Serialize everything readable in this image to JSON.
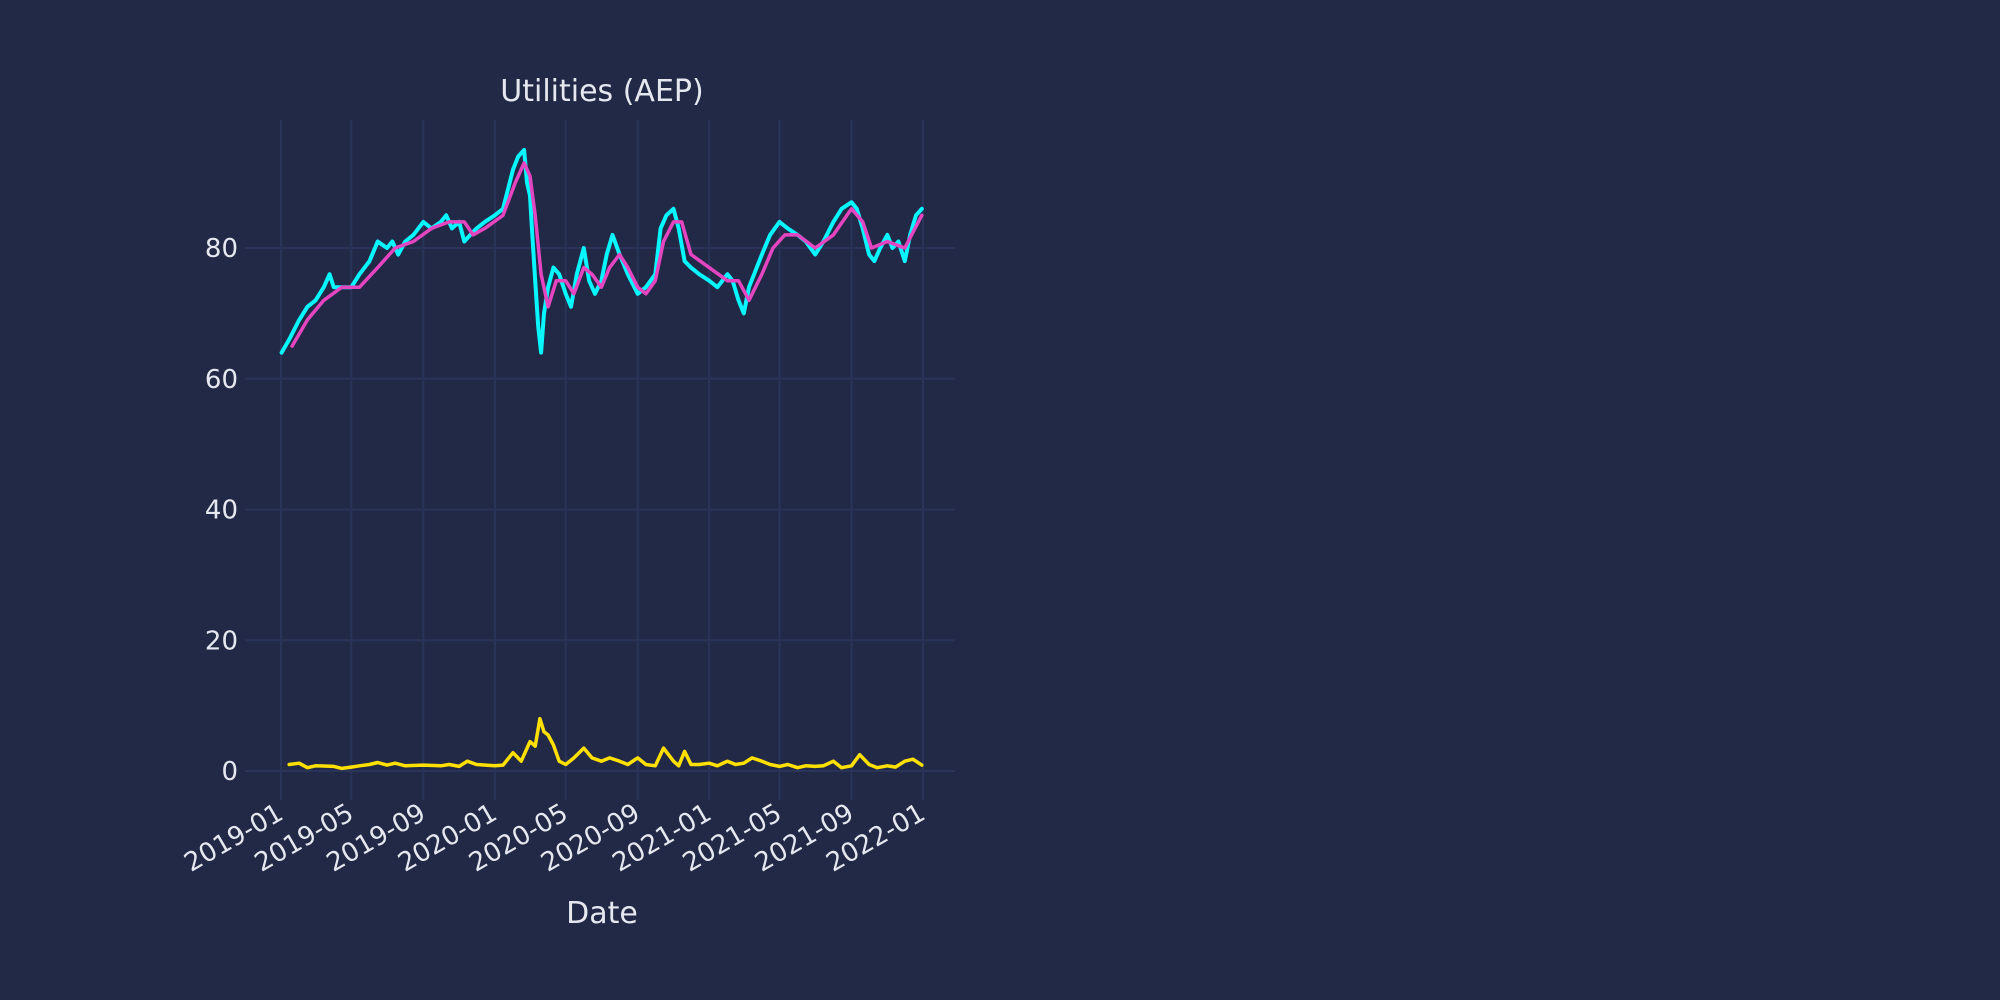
{
  "chart_data": {
    "type": "line",
    "title": "Utilities (AEP)",
    "xlabel": "Date",
    "ylabel": "",
    "x_range": [
      "2019-01-01",
      "2022-01-01"
    ],
    "ylim": [
      -4.5,
      100
    ],
    "x_ticks": [
      "2019-01",
      "2019-05",
      "2019-09",
      "2020-01",
      "2020-05",
      "2020-09",
      "2021-01",
      "2021-05",
      "2021-09",
      "2022-01"
    ],
    "y_ticks": [
      0,
      20,
      40,
      60,
      80
    ],
    "grid": true,
    "legend": "none",
    "colors": {
      "background": "#212946",
      "grid": "#2A3459",
      "text": "#E6E8F0",
      "price": "#08F7FE",
      "moving_average": "#E545C0",
      "volatility": "#FFE000"
    },
    "series": [
      {
        "role": "price",
        "color": "#08F7FE",
        "points": [
          [
            "2019-01-02",
            64
          ],
          [
            "2019-01-15",
            66
          ],
          [
            "2019-02-01",
            69
          ],
          [
            "2019-02-15",
            71
          ],
          [
            "2019-03-01",
            72
          ],
          [
            "2019-03-15",
            74
          ],
          [
            "2019-03-25",
            76
          ],
          [
            "2019-04-01",
            74
          ],
          [
            "2019-04-15",
            74
          ],
          [
            "2019-05-01",
            74
          ],
          [
            "2019-05-15",
            76
          ],
          [
            "2019-06-01",
            78
          ],
          [
            "2019-06-15",
            81
          ],
          [
            "2019-07-01",
            80
          ],
          [
            "2019-07-10",
            81
          ],
          [
            "2019-07-20",
            79
          ],
          [
            "2019-08-01",
            81
          ],
          [
            "2019-08-15",
            82
          ],
          [
            "2019-09-01",
            84
          ],
          [
            "2019-09-15",
            83
          ],
          [
            "2019-10-01",
            84
          ],
          [
            "2019-10-10",
            85
          ],
          [
            "2019-10-20",
            83
          ],
          [
            "2019-11-01",
            84
          ],
          [
            "2019-11-10",
            81
          ],
          [
            "2019-11-20",
            82
          ],
          [
            "2019-12-01",
            83
          ],
          [
            "2019-12-15",
            84
          ],
          [
            "2020-01-01",
            85
          ],
          [
            "2020-01-15",
            86
          ],
          [
            "2020-02-01",
            92
          ],
          [
            "2020-02-10",
            94
          ],
          [
            "2020-02-20",
            95
          ],
          [
            "2020-02-25",
            90
          ],
          [
            "2020-03-01",
            88
          ],
          [
            "2020-03-05",
            82
          ],
          [
            "2020-03-10",
            75
          ],
          [
            "2020-03-15",
            68
          ],
          [
            "2020-03-20",
            64
          ],
          [
            "2020-03-25",
            70
          ],
          [
            "2020-04-01",
            74
          ],
          [
            "2020-04-10",
            77
          ],
          [
            "2020-04-20",
            76
          ],
          [
            "2020-05-01",
            73
          ],
          [
            "2020-05-10",
            71
          ],
          [
            "2020-05-20",
            76
          ],
          [
            "2020-06-01",
            80
          ],
          [
            "2020-06-10",
            75
          ],
          [
            "2020-06-20",
            73
          ],
          [
            "2020-07-01",
            75
          ],
          [
            "2020-07-10",
            79
          ],
          [
            "2020-07-20",
            82
          ],
          [
            "2020-08-01",
            79
          ],
          [
            "2020-08-15",
            76
          ],
          [
            "2020-09-01",
            73
          ],
          [
            "2020-09-15",
            74
          ],
          [
            "2020-10-01",
            76
          ],
          [
            "2020-10-10",
            83
          ],
          [
            "2020-10-20",
            85
          ],
          [
            "2020-11-01",
            86
          ],
          [
            "2020-11-10",
            83
          ],
          [
            "2020-11-20",
            78
          ],
          [
            "2020-12-01",
            77
          ],
          [
            "2020-12-15",
            76
          ],
          [
            "2021-01-01",
            75
          ],
          [
            "2021-01-15",
            74
          ],
          [
            "2021-02-01",
            76
          ],
          [
            "2021-02-10",
            75
          ],
          [
            "2021-02-20",
            72
          ],
          [
            "2021-03-01",
            70
          ],
          [
            "2021-03-10",
            74
          ],
          [
            "2021-04-01",
            79
          ],
          [
            "2021-04-15",
            82
          ],
          [
            "2021-05-01",
            84
          ],
          [
            "2021-05-15",
            83
          ],
          [
            "2021-06-01",
            82
          ],
          [
            "2021-06-15",
            81
          ],
          [
            "2021-07-01",
            79
          ],
          [
            "2021-07-15",
            81
          ],
          [
            "2021-08-01",
            84
          ],
          [
            "2021-08-15",
            86
          ],
          [
            "2021-09-01",
            87
          ],
          [
            "2021-09-10",
            86
          ],
          [
            "2021-09-20",
            83
          ],
          [
            "2021-10-01",
            79
          ],
          [
            "2021-10-10",
            78
          ],
          [
            "2021-10-20",
            80
          ],
          [
            "2021-11-01",
            82
          ],
          [
            "2021-11-10",
            80
          ],
          [
            "2021-11-20",
            81
          ],
          [
            "2021-12-01",
            78
          ],
          [
            "2021-12-10",
            82
          ],
          [
            "2021-12-20",
            85
          ],
          [
            "2021-12-30",
            86
          ]
        ]
      },
      {
        "role": "moving_average",
        "color": "#E545C0",
        "points": [
          [
            "2019-01-20",
            65
          ],
          [
            "2019-02-15",
            69
          ],
          [
            "2019-03-15",
            72
          ],
          [
            "2019-04-15",
            74
          ],
          [
            "2019-05-15",
            74
          ],
          [
            "2019-06-15",
            77
          ],
          [
            "2019-07-15",
            80
          ],
          [
            "2019-08-15",
            81
          ],
          [
            "2019-09-15",
            83
          ],
          [
            "2019-10-15",
            84
          ],
          [
            "2019-11-10",
            84
          ],
          [
            "2019-11-25",
            82
          ],
          [
            "2019-12-15",
            83
          ],
          [
            "2020-01-15",
            85
          ],
          [
            "2020-02-05",
            90
          ],
          [
            "2020-02-20",
            93
          ],
          [
            "2020-03-01",
            91
          ],
          [
            "2020-03-10",
            85
          ],
          [
            "2020-03-20",
            76
          ],
          [
            "2020-04-01",
            71
          ],
          [
            "2020-04-15",
            75
          ],
          [
            "2020-05-01",
            75
          ],
          [
            "2020-05-15",
            73
          ],
          [
            "2020-06-01",
            77
          ],
          [
            "2020-06-15",
            76
          ],
          [
            "2020-07-01",
            74
          ],
          [
            "2020-07-15",
            77
          ],
          [
            "2020-08-01",
            79
          ],
          [
            "2020-08-15",
            77
          ],
          [
            "2020-09-01",
            74
          ],
          [
            "2020-09-15",
            73
          ],
          [
            "2020-10-01",
            75
          ],
          [
            "2020-10-15",
            81
          ],
          [
            "2020-11-01",
            84
          ],
          [
            "2020-11-15",
            84
          ],
          [
            "2020-12-01",
            79
          ],
          [
            "2021-01-01",
            77
          ],
          [
            "2021-02-01",
            75
          ],
          [
            "2021-02-20",
            75
          ],
          [
            "2021-03-10",
            72
          ],
          [
            "2021-04-01",
            76
          ],
          [
            "2021-04-20",
            80
          ],
          [
            "2021-05-10",
            82
          ],
          [
            "2021-06-01",
            82
          ],
          [
            "2021-07-01",
            80
          ],
          [
            "2021-08-01",
            82
          ],
          [
            "2021-09-01",
            86
          ],
          [
            "2021-09-20",
            84
          ],
          [
            "2021-10-05",
            80
          ],
          [
            "2021-11-01",
            81
          ],
          [
            "2021-12-01",
            80
          ],
          [
            "2021-12-30",
            85
          ]
        ]
      },
      {
        "role": "volatility",
        "color": "#FFE000",
        "points": [
          [
            "2019-01-15",
            1.0
          ],
          [
            "2019-02-01",
            1.2
          ],
          [
            "2019-02-15",
            0.5
          ],
          [
            "2019-03-01",
            0.8
          ],
          [
            "2019-04-01",
            0.7
          ],
          [
            "2019-04-15",
            0.4
          ],
          [
            "2019-05-01",
            0.6
          ],
          [
            "2019-05-15",
            0.8
          ],
          [
            "2019-06-01",
            1.0
          ],
          [
            "2019-06-15",
            1.3
          ],
          [
            "2019-07-01",
            0.9
          ],
          [
            "2019-07-15",
            1.2
          ],
          [
            "2019-08-01",
            0.8
          ],
          [
            "2019-09-01",
            0.9
          ],
          [
            "2019-10-01",
            0.8
          ],
          [
            "2019-10-15",
            1.0
          ],
          [
            "2019-11-01",
            0.7
          ],
          [
            "2019-11-15",
            1.5
          ],
          [
            "2019-12-01",
            1.0
          ],
          [
            "2020-01-01",
            0.8
          ],
          [
            "2020-01-15",
            0.9
          ],
          [
            "2020-02-01",
            2.8
          ],
          [
            "2020-02-15",
            1.5
          ],
          [
            "2020-03-01",
            4.5
          ],
          [
            "2020-03-10",
            3.8
          ],
          [
            "2020-03-18",
            8.0
          ],
          [
            "2020-03-25",
            6.0
          ],
          [
            "2020-04-01",
            5.5
          ],
          [
            "2020-04-10",
            4.0
          ],
          [
            "2020-04-20",
            1.5
          ],
          [
            "2020-05-01",
            1.0
          ],
          [
            "2020-05-15",
            2.0
          ],
          [
            "2020-06-01",
            3.5
          ],
          [
            "2020-06-15",
            2.0
          ],
          [
            "2020-07-01",
            1.5
          ],
          [
            "2020-07-15",
            2.0
          ],
          [
            "2020-08-01",
            1.5
          ],
          [
            "2020-08-15",
            1.0
          ],
          [
            "2020-09-01",
            2.0
          ],
          [
            "2020-09-15",
            1.0
          ],
          [
            "2020-10-01",
            0.8
          ],
          [
            "2020-10-15",
            3.5
          ],
          [
            "2020-11-01",
            1.5
          ],
          [
            "2020-11-10",
            0.8
          ],
          [
            "2020-11-20",
            3.0
          ],
          [
            "2020-12-01",
            1.0
          ],
          [
            "2020-12-15",
            1.0
          ],
          [
            "2021-01-01",
            1.2
          ],
          [
            "2021-01-15",
            0.8
          ],
          [
            "2021-02-01",
            1.5
          ],
          [
            "2021-02-15",
            1.0
          ],
          [
            "2021-03-01",
            1.2
          ],
          [
            "2021-03-15",
            2.0
          ],
          [
            "2021-04-01",
            1.5
          ],
          [
            "2021-04-15",
            1.0
          ],
          [
            "2021-05-01",
            0.7
          ],
          [
            "2021-05-15",
            1.0
          ],
          [
            "2021-06-01",
            0.5
          ],
          [
            "2021-06-15",
            0.8
          ],
          [
            "2021-07-01",
            0.7
          ],
          [
            "2021-07-15",
            0.8
          ],
          [
            "2021-08-01",
            1.5
          ],
          [
            "2021-08-15",
            0.5
          ],
          [
            "2021-09-01",
            0.8
          ],
          [
            "2021-09-15",
            2.5
          ],
          [
            "2021-10-01",
            1.0
          ],
          [
            "2021-10-15",
            0.5
          ],
          [
            "2021-11-01",
            0.8
          ],
          [
            "2021-11-15",
            0.6
          ],
          [
            "2021-12-01",
            1.5
          ],
          [
            "2021-12-15",
            1.8
          ],
          [
            "2021-12-30",
            0.9
          ]
        ]
      }
    ]
  }
}
